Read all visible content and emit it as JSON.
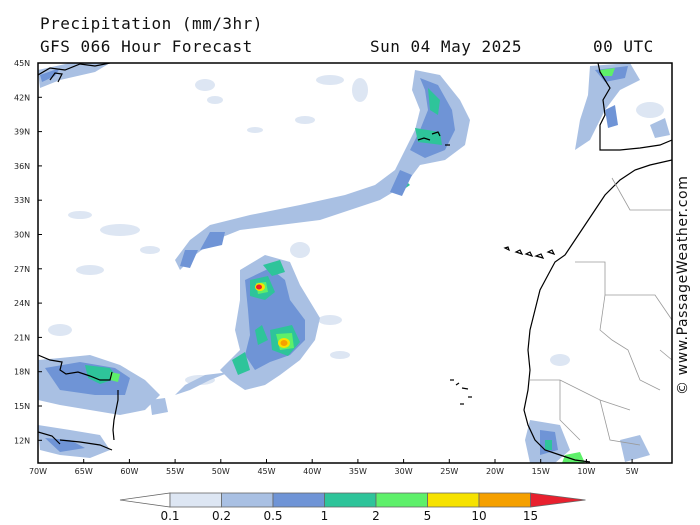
{
  "header": {
    "title": "Precipitation (mm/3hr)",
    "subtitle": "GFS 066 Hour Forecast",
    "date": "Sun 04 May 2025",
    "time": "00 UTC"
  },
  "credit": "© www.PassageWeather.com",
  "map": {
    "lat_labels": [
      "45N",
      "42N",
      "39N",
      "36N",
      "33N",
      "30N",
      "27N",
      "24N",
      "21N",
      "18N",
      "15N",
      "12N"
    ],
    "lon_labels": [
      "70W",
      "65W",
      "60W",
      "55W",
      "50W",
      "45W",
      "40W",
      "35W",
      "30W",
      "25W",
      "20W",
      "15W",
      "10W",
      "5W"
    ],
    "land_color": "#ffffff",
    "border_color": "#000000"
  },
  "legend": {
    "thresholds": [
      "0.1",
      "0.2",
      "0.5",
      "1",
      "2",
      "5",
      "10",
      "15"
    ],
    "colors": [
      "#ffffff",
      "#dde6f3",
      "#a9c0e3",
      "#6f94d6",
      "#2ec49a",
      "#5ef06a",
      "#f6e200",
      "#f5a000",
      "#e8202e"
    ]
  }
}
